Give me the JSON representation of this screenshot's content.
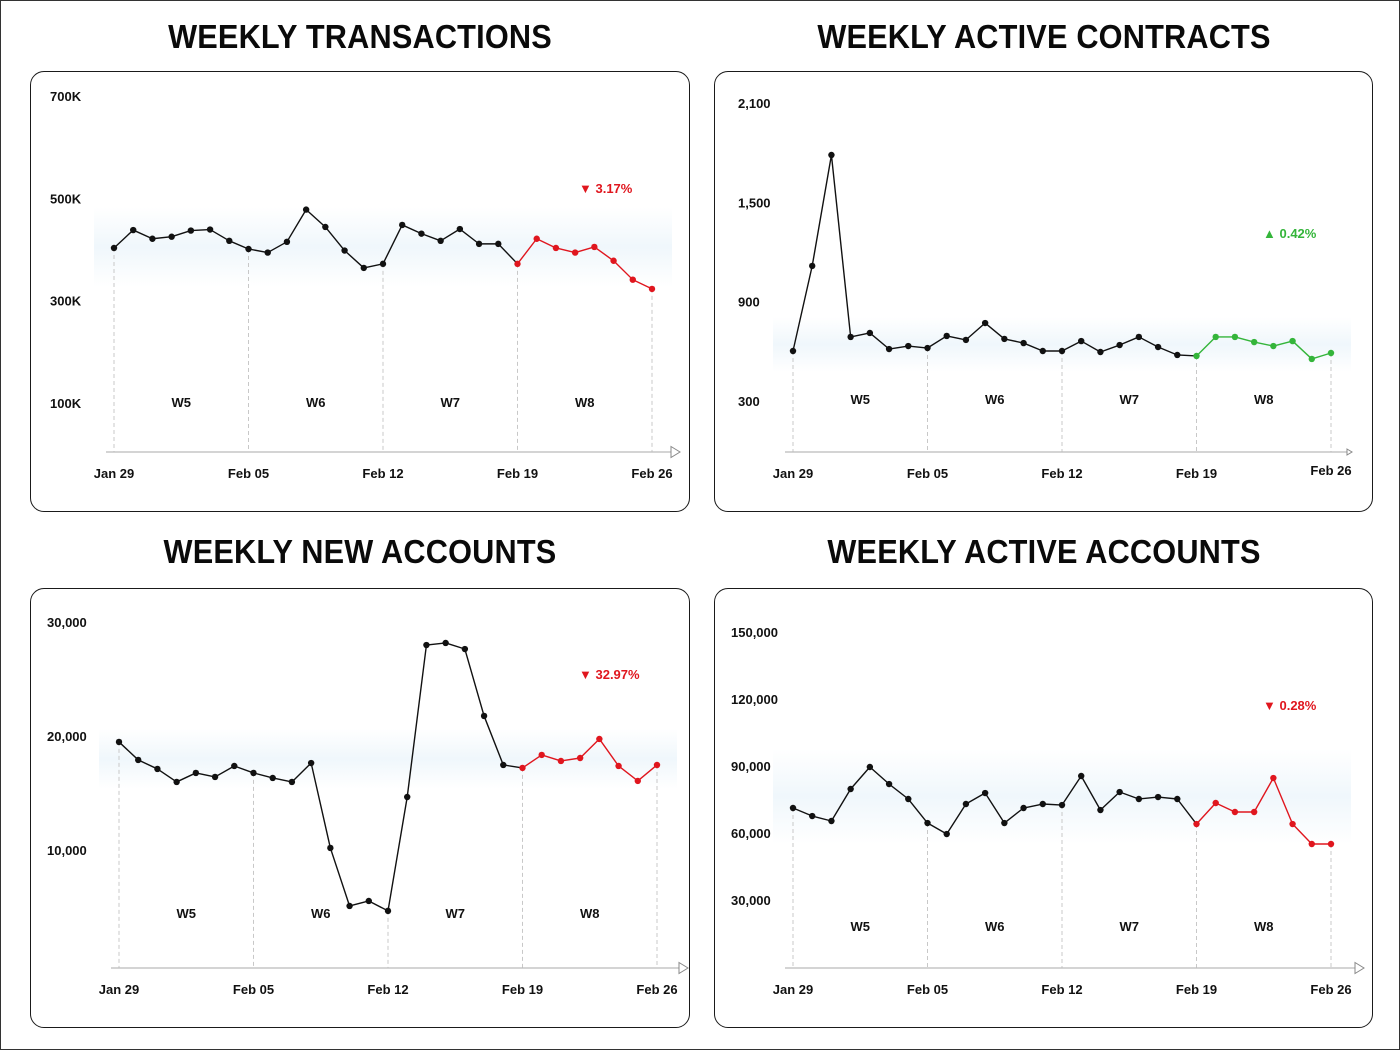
{
  "colors": {
    "line": "#111111",
    "down": "#e0161e",
    "up": "#34b53a",
    "grid_dash": "#c8c8c8",
    "axis": "#bbbbbb",
    "glow": "#eef6fb"
  },
  "chart_data": [
    {
      "type": "line",
      "title": "WEEKLY TRANSACTIONS",
      "xlabel": "",
      "ylabel": "",
      "ylim": [
        100000,
        700000
      ],
      "yticks": [
        {
          "value": 700000,
          "label": "700K"
        },
        {
          "value": 500000,
          "label": "500K"
        },
        {
          "value": 300000,
          "label": "300K"
        },
        {
          "value": 100000,
          "label": "100K"
        }
      ],
      "xticks": [
        "Jan 29",
        "Feb 05",
        "Feb 12",
        "Feb 19",
        "Feb 26"
      ],
      "weeks": [
        "W5",
        "W6",
        "W7",
        "W8"
      ],
      "highlight_week": "W8",
      "change": {
        "direction": "down",
        "text": "3.17%",
        "arrow": "▼"
      },
      "grid": false,
      "series": [
        {
          "name": "Weekly Transactions",
          "values": [
            403000,
            438000,
            421000,
            425000,
            437000,
            439000,
            417000,
            401000,
            394000,
            415000,
            478000,
            444000,
            398000,
            364000,
            372000,
            448000,
            431000,
            417000,
            440000,
            411000,
            411000,
            372000,
            421000,
            403000,
            394000,
            405000,
            378000,
            341000,
            323000
          ]
        }
      ]
    },
    {
      "type": "line",
      "title": "WEEKLY ACTIVE CONTRACTS",
      "xlabel": "",
      "ylabel": "",
      "ylim": [
        300,
        2100
      ],
      "yticks": [
        {
          "value": 2100,
          "label": "2,100"
        },
        {
          "value": 1500,
          "label": "1,500"
        },
        {
          "value": 900,
          "label": "900"
        },
        {
          "value": 300,
          "label": "300"
        }
      ],
      "xticks": [
        "Jan 29",
        "Feb 05",
        "Feb 12",
        "Feb 19",
        "Feb 26"
      ],
      "weeks": [
        "W5",
        "W6",
        "W7",
        "W8"
      ],
      "highlight_week": "W8",
      "change": {
        "direction": "up",
        "text": "0.42%",
        "arrow": "▲"
      },
      "grid": false,
      "series": [
        {
          "name": "Weekly Active Contracts",
          "values": [
            602,
            1116,
            1786,
            687,
            711,
            614,
            632,
            620,
            693,
            669,
            771,
            675,
            650,
            602,
            602,
            662,
            596,
            638,
            687,
            626,
            578,
            572,
            687,
            687,
            656,
            632,
            662,
            554,
            590
          ]
        }
      ]
    },
    {
      "type": "line",
      "title": "WEEKLY NEW ACCOUNTS",
      "xlabel": "",
      "ylabel": "",
      "ylim": [
        10000,
        30000
      ],
      "yticks": [
        {
          "value": 30000,
          "label": "30,000"
        },
        {
          "value": 20000,
          "label": "20,000"
        },
        {
          "value": 10000,
          "label": "10,000"
        }
      ],
      "xticks": [
        "Jan 29",
        "Feb 05",
        "Feb 12",
        "Feb 19",
        "Feb 26"
      ],
      "weeks": [
        "W5",
        "W6",
        "W7",
        "W8"
      ],
      "highlight_week": "W8",
      "change": {
        "direction": "down",
        "text": "32.97%",
        "arrow": "▼"
      },
      "grid": false,
      "series": [
        {
          "name": "Weekly New Accounts",
          "values": [
            19480,
            17900,
            17110,
            15970,
            16760,
            16410,
            17370,
            16760,
            16320,
            15970,
            17630,
            10180,
            5090,
            5530,
            4660,
            14650,
            27980,
            28160,
            27630,
            21760,
            17460,
            17200,
            18340,
            17810,
            18070,
            19740,
            17370,
            16060,
            17460
          ]
        }
      ]
    },
    {
      "type": "line",
      "title": "WEEKLY ACTIVE ACCOUNTS",
      "xlabel": "",
      "ylabel": "",
      "ylim": [
        30000,
        150000
      ],
      "yticks": [
        {
          "value": 150000,
          "label": "150,000"
        },
        {
          "value": 120000,
          "label": "120,000"
        },
        {
          "value": 90000,
          "label": "90,000"
        },
        {
          "value": 60000,
          "label": "60,000"
        },
        {
          "value": 30000,
          "label": "30,000"
        }
      ],
      "xticks": [
        "Jan 29",
        "Feb 05",
        "Feb 12",
        "Feb 19",
        "Feb 26"
      ],
      "weeks": [
        "W5",
        "W6",
        "W7",
        "W8"
      ],
      "highlight_week": "W8",
      "change": {
        "direction": "down",
        "text": "0.28%",
        "arrow": "▼"
      },
      "grid": false,
      "series": [
        {
          "name": "Weekly Active Accounts",
          "values": [
            71190,
            67600,
            65370,
            79700,
            89550,
            81930,
            75220,
            64470,
            59540,
            72980,
            77900,
            64470,
            71190,
            72980,
            72530,
            85520,
            70290,
            78350,
            75220,
            76110,
            75220,
            64020,
            73430,
            69400,
            69400,
            84620,
            64020,
            55070,
            55070
          ]
        }
      ]
    }
  ]
}
